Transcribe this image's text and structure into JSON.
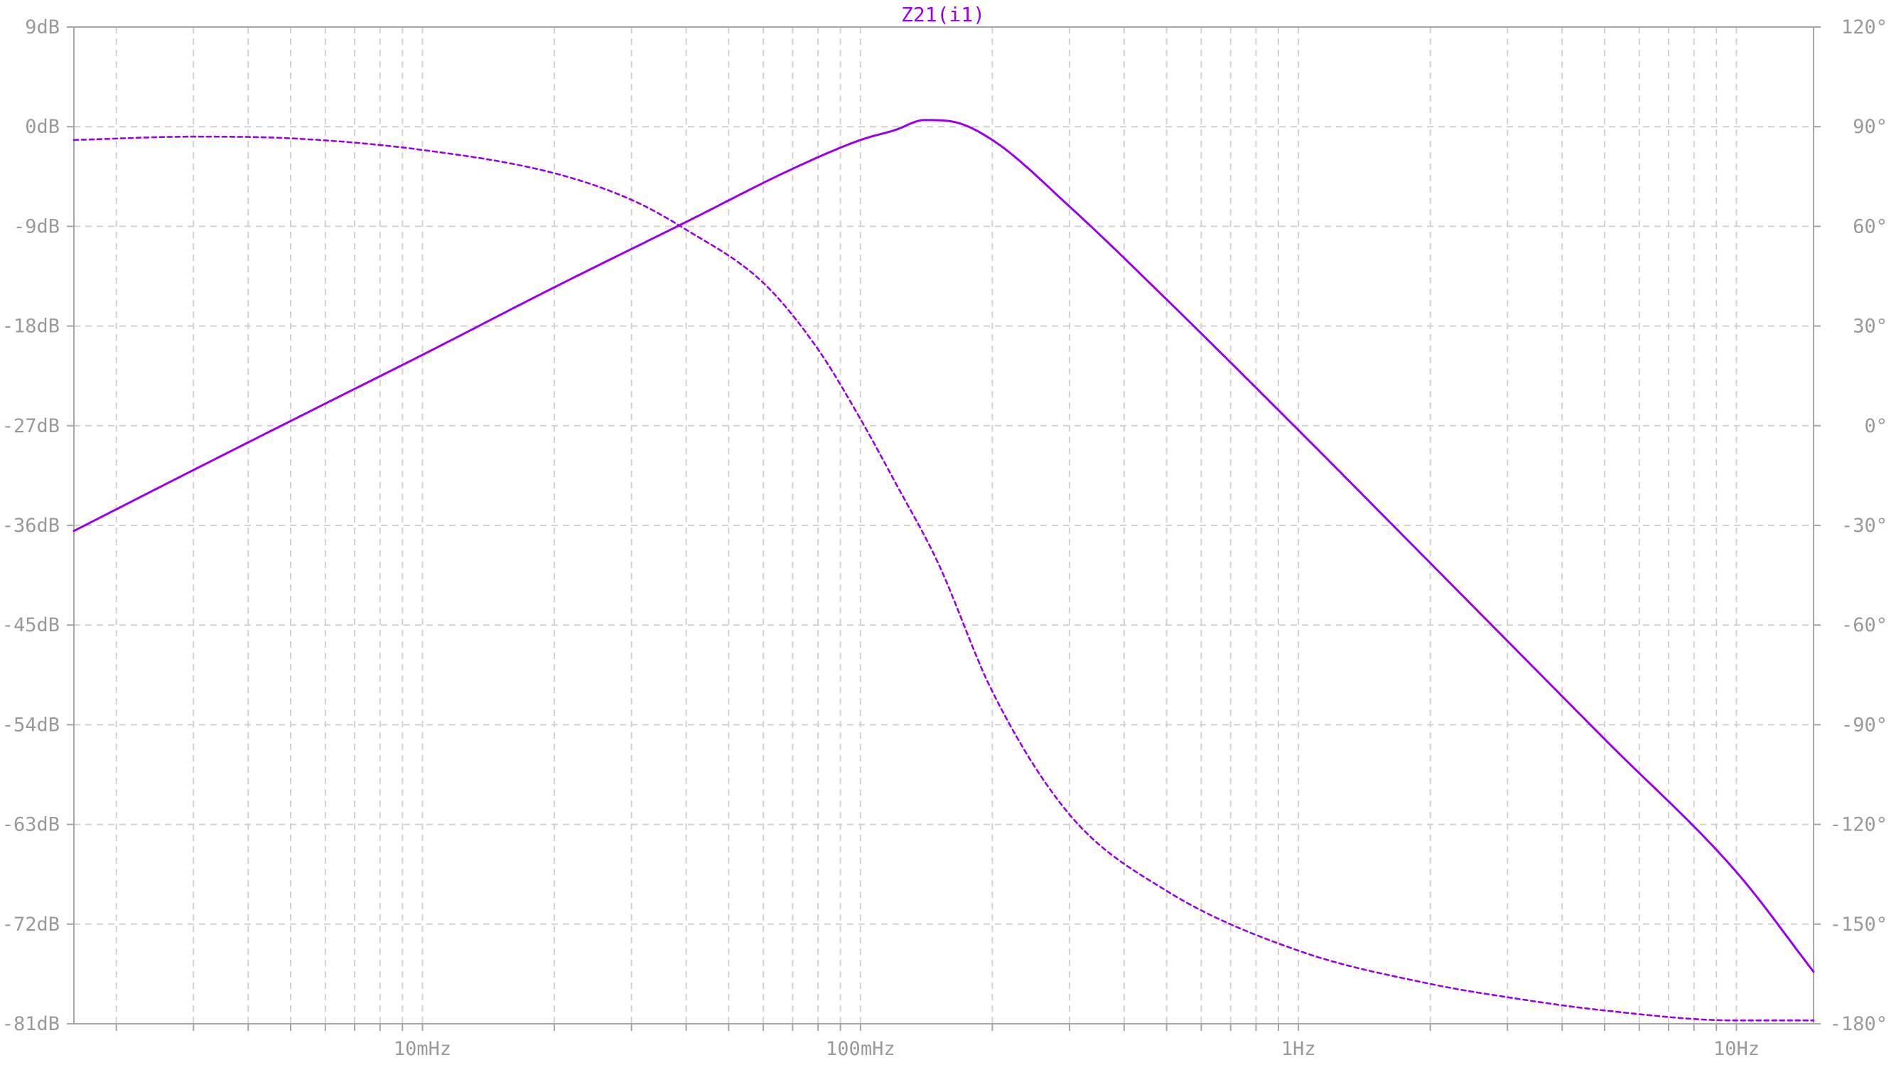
{
  "colors": {
    "trace": "#9900ee",
    "axis": "#a6a6a6",
    "grid": "#d2d2d2",
    "text": "#9a9a9a"
  },
  "chart_data": {
    "type": "line",
    "title": "Z21(i1)",
    "x_scale": "log",
    "xlim_hz": [
      0.0016,
      15
    ],
    "x_ticks": [
      {
        "value": 0.01,
        "label": "10mHz"
      },
      {
        "value": 0.1,
        "label": "100mHz"
      },
      {
        "value": 1,
        "label": "1Hz"
      },
      {
        "value": 10,
        "label": "10Hz"
      }
    ],
    "y_left": {
      "unit": "dB",
      "range": [
        -81,
        9
      ],
      "ticks": [
        "9dB",
        "0dB",
        "-9dB",
        "-18dB",
        "-27dB",
        "-36dB",
        "-45dB",
        "-54dB",
        "-63dB",
        "-72dB",
        "-81dB"
      ]
    },
    "y_right": {
      "unit": "degrees",
      "range": [
        -180,
        120
      ],
      "ticks": [
        "120°",
        "90°",
        "60°",
        "30°",
        "0°",
        "-30°",
        "-60°",
        "-90°",
        "-120°",
        "-150°",
        "-180°"
      ]
    },
    "grid": true,
    "series": [
      {
        "style": "solid",
        "axis": "left",
        "x": [
          0.0016,
          0.003,
          0.006,
          0.01,
          0.02,
          0.04,
          0.07,
          0.1,
          0.12,
          0.14,
          0.16,
          0.2,
          0.3,
          0.5,
          1,
          2,
          5,
          10,
          15
        ],
        "y": [
          -36.5,
          -31.0,
          -25.0,
          -20.6,
          -14.5,
          -8.6,
          -3.8,
          -1.2,
          -0.3,
          0.6,
          0.5,
          -1.2,
          -7.2,
          -15.6,
          -27.4,
          -39.4,
          -55.3,
          -67.3,
          -76.3
        ]
      },
      {
        "style": "dashed",
        "axis": "right",
        "x": [
          0.0016,
          0.003,
          0.005,
          0.01,
          0.02,
          0.03,
          0.04,
          0.06,
          0.08,
          0.1,
          0.12,
          0.15,
          0.2,
          0.3,
          0.5,
          1,
          2,
          3,
          5,
          10,
          15
        ],
        "y": [
          86,
          87,
          86.5,
          83,
          76,
          68,
          59,
          43,
          23,
          2,
          -17,
          -41,
          -80,
          -117,
          -140,
          -158,
          -168,
          -172,
          -176,
          -179,
          -179
        ]
      }
    ]
  }
}
